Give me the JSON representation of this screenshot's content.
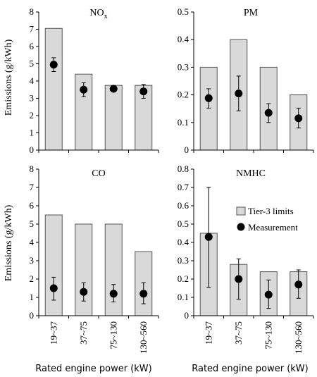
{
  "chart_data": [
    {
      "type": "bar",
      "title": "NO",
      "title_subscript": "x",
      "categories": [
        "19~37",
        "37~75",
        "75~130",
        "130~560"
      ],
      "ylim": [
        0,
        8
      ],
      "yticks": [
        0,
        1,
        2,
        3,
        4,
        5,
        6,
        7,
        8
      ],
      "series": [
        {
          "name": "Tier-3 limits",
          "values": [
            7.05,
            4.4,
            3.75,
            3.75
          ]
        },
        {
          "name": "Measurement",
          "values": [
            4.95,
            3.5,
            3.55,
            3.4
          ],
          "err_low": [
            4.55,
            3.1,
            3.45,
            3.0
          ],
          "err_high": [
            5.35,
            3.9,
            3.65,
            3.8
          ]
        }
      ]
    },
    {
      "type": "bar",
      "title": "PM",
      "categories": [
        "19~37",
        "37~75",
        "75~130",
        "130~560"
      ],
      "ylim": [
        0,
        0.5
      ],
      "yticks": [
        "0",
        "0.1",
        "0.2",
        "0.3",
        "0.4",
        "0.5"
      ],
      "series": [
        {
          "name": "Tier-3 limits",
          "values": [
            0.3,
            0.4,
            0.3,
            0.2
          ]
        },
        {
          "name": "Measurement",
          "values": [
            0.188,
            0.205,
            0.135,
            0.115
          ],
          "err_low": [
            0.152,
            0.142,
            0.1,
            0.08
          ],
          "err_high": [
            0.222,
            0.268,
            0.168,
            0.152
          ]
        }
      ]
    },
    {
      "type": "bar",
      "title": "CO",
      "categories": [
        "19~37",
        "37~75",
        "75~130",
        "130~560"
      ],
      "ylim": [
        0,
        8
      ],
      "yticks": [
        0,
        1,
        2,
        3,
        4,
        5,
        6,
        7,
        8
      ],
      "series": [
        {
          "name": "Tier-3 limits",
          "values": [
            5.5,
            5.0,
            5.0,
            3.5
          ]
        },
        {
          "name": "Measurement",
          "values": [
            1.5,
            1.3,
            1.2,
            1.2
          ],
          "err_low": [
            0.85,
            0.8,
            0.75,
            0.65
          ],
          "err_high": [
            2.1,
            1.8,
            1.7,
            1.8
          ]
        }
      ]
    },
    {
      "type": "bar",
      "title": "NMHC",
      "categories": [
        "19~37",
        "37~75",
        "75~130",
        "130~560"
      ],
      "ylim": [
        0,
        0.8
      ],
      "yticks": [
        "0",
        "0.1",
        "0.2",
        "0.3",
        "0.4",
        "0.5",
        "0.6",
        "0.7",
        "0.8"
      ],
      "series": [
        {
          "name": "Tier-3 limits",
          "values": [
            0.45,
            0.28,
            0.24,
            0.24
          ]
        },
        {
          "name": "Measurement",
          "values": [
            0.43,
            0.2,
            0.115,
            0.17
          ],
          "err_low": [
            0.155,
            0.09,
            0.04,
            0.095
          ],
          "err_high": [
            0.7,
            0.31,
            0.195,
            0.25
          ]
        }
      ]
    }
  ],
  "ylabel": "Emissions (g/kWh)",
  "xlabel": "Rated engine power (kW)",
  "legend": {
    "position": "right-center of NMHC panel",
    "items": [
      {
        "label": "Tier-3 limits",
        "marker": "bar"
      },
      {
        "label": "Measurement",
        "marker": "dot"
      }
    ]
  },
  "colors": {
    "bar_fill": "#d9d9d9",
    "bar_stroke": "#555555",
    "marker": "#000000"
  }
}
